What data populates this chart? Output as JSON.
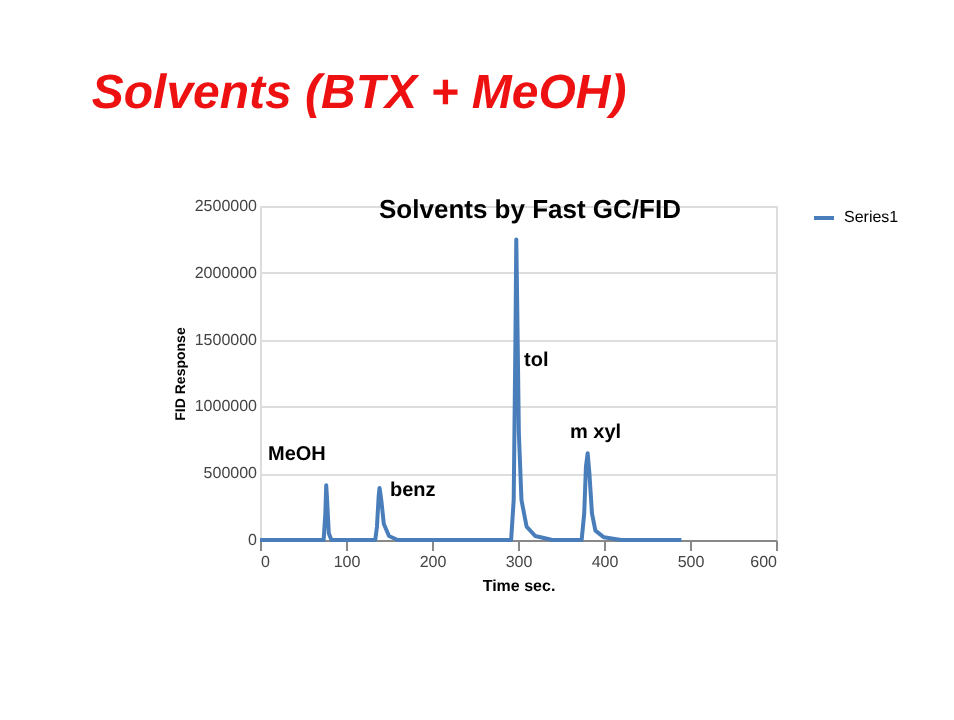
{
  "chart_data": {
    "type": "line",
    "title": "Solvents (BTX + MeOH)",
    "subtitle": "Solvents by Fast GC/FID",
    "xlabel": "Time sec.",
    "ylabel": "FID Response",
    "x": [
      0,
      74,
      76,
      77,
      78,
      80,
      83,
      88,
      134,
      136,
      138,
      139,
      141,
      144,
      150,
      160,
      180,
      292,
      295,
      297,
      298,
      299,
      301,
      304,
      310,
      320,
      340,
      360,
      374,
      377,
      379,
      381,
      383,
      386,
      390,
      400,
      420,
      440,
      490
    ],
    "series": [
      {
        "name": "Series1",
        "color": "#4a7ebb",
        "values": [
          0,
          0,
          200000,
          410000,
          300000,
          50000,
          0,
          0,
          0,
          100000,
          330000,
          390000,
          300000,
          120000,
          30000,
          0,
          0,
          0,
          300000,
          1500000,
          2250000,
          1800000,
          800000,
          300000,
          100000,
          30000,
          0,
          0,
          0,
          200000,
          550000,
          650000,
          500000,
          200000,
          70000,
          20000,
          0,
          0,
          0
        ]
      }
    ],
    "xlim": [
      0,
      600
    ],
    "xticks": [
      0,
      100,
      200,
      300,
      400,
      500,
      600
    ],
    "ylim": [
      0,
      2500000
    ],
    "yticks": [
      0,
      500000,
      1000000,
      1500000,
      2000000,
      2500000
    ],
    "grid": "y",
    "legend": "right",
    "annotations": [
      "MeOH",
      "benz",
      "tol",
      "m xyl"
    ]
  }
}
